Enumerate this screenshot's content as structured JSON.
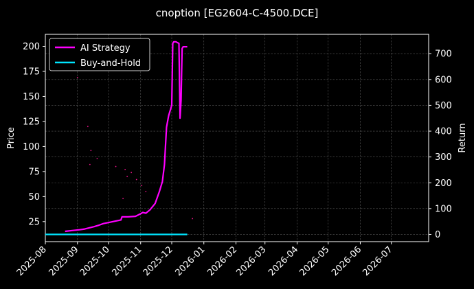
{
  "chart_data": {
    "type": "line",
    "title": "cnoption [EG2604-C-4500.DCE]",
    "ylabel_left": "Price",
    "ylabel_right": "Return",
    "x_ticks": [
      "2025-08",
      "2025-09",
      "2025-10",
      "2025-11",
      "2025-12",
      "2026-01",
      "2026-02",
      "2026-03",
      "2026-04",
      "2026-05",
      "2026-06",
      "2026-07"
    ],
    "xlim": [
      "2025-08-01",
      "2026-08-06"
    ],
    "ylim_left": [
      5,
      212
    ],
    "ylim_right": [
      -28,
      775
    ],
    "y_ticks_left": [
      25,
      50,
      75,
      100,
      125,
      150,
      175,
      200
    ],
    "y_ticks_right": [
      0,
      100,
      200,
      300,
      400,
      500,
      600,
      700
    ],
    "grid": true,
    "legend": {
      "placement": "top-left",
      "entries": [
        {
          "name": "AI Strategy",
          "color": "#ff00ff"
        },
        {
          "name": "Buy-and-Hold",
          "color": "#00e5ff"
        }
      ]
    },
    "series": [
      {
        "name": "AI Strategy",
        "axis": "right",
        "color": "#ff00ff",
        "x": [
          "2025-08-20",
          "2025-08-27",
          "2025-09-03",
          "2025-09-08",
          "2025-09-12",
          "2025-09-17",
          "2025-09-22",
          "2025-09-26",
          "2025-10-01",
          "2025-10-08",
          "2025-10-13",
          "2025-10-14",
          "2025-10-20",
          "2025-10-27",
          "2025-11-01",
          "2025-11-03",
          "2025-11-06",
          "2025-11-10",
          "2025-11-15",
          "2025-11-19",
          "2025-11-22",
          "2025-11-24",
          "2025-11-26",
          "2025-11-28",
          "2025-12-01",
          "2025-12-02",
          "2025-12-03",
          "2025-12-05",
          "2025-12-08",
          "2025-12-09",
          "2025-12-10",
          "2025-12-11",
          "2025-12-12",
          "2025-12-16"
        ],
        "values": [
          12,
          15,
          18,
          21,
          25,
          30,
          36,
          42,
          46,
          52,
          56,
          68,
          68,
          70,
          80,
          85,
          82,
          95,
          120,
          165,
          205,
          270,
          415,
          460,
          500,
          740,
          746,
          746,
          740,
          450,
          520,
          720,
          727,
          727
        ]
      },
      {
        "name": "Buy-and-Hold",
        "axis": "right",
        "color": "#00e5ff",
        "x": [
          "2025-08-01",
          "2025-12-16"
        ],
        "values": [
          0,
          0
        ]
      }
    ],
    "scatter_price": {
      "axis": "left",
      "color": "#ff1493",
      "points": [
        {
          "x": "2025-09-01",
          "y": 169
        },
        {
          "x": "2025-09-11",
          "y": 120
        },
        {
          "x": "2025-09-14",
          "y": 96
        },
        {
          "x": "2025-09-20",
          "y": 88
        },
        {
          "x": "2025-09-13",
          "y": 82
        },
        {
          "x": "2025-10-08",
          "y": 80
        },
        {
          "x": "2025-10-17",
          "y": 77
        },
        {
          "x": "2025-10-23",
          "y": 74
        },
        {
          "x": "2025-10-19",
          "y": 70
        },
        {
          "x": "2025-10-28",
          "y": 67
        },
        {
          "x": "2025-11-02",
          "y": 61
        },
        {
          "x": "2025-11-06",
          "y": 55
        },
        {
          "x": "2025-10-15",
          "y": 48
        },
        {
          "x": "2025-12-21",
          "y": 28
        }
      ]
    }
  }
}
